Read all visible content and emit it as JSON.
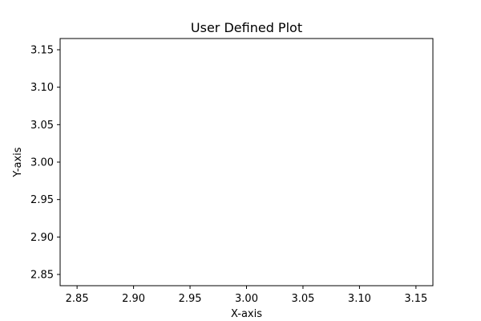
{
  "chart_data": {
    "type": "line",
    "title": "User Defined Plot",
    "xlabel": "X-axis",
    "ylabel": "Y-axis",
    "xlim": [
      2.835,
      3.165
    ],
    "ylim": [
      2.835,
      3.165
    ],
    "xticks": [
      2.85,
      2.9,
      2.95,
      3.0,
      3.05,
      3.1,
      3.15
    ],
    "xtick_labels": [
      "2.85",
      "2.90",
      "2.95",
      "3.00",
      "3.05",
      "3.10",
      "3.15"
    ],
    "yticks": [
      2.85,
      2.9,
      2.95,
      3.0,
      3.05,
      3.1,
      3.15
    ],
    "ytick_labels": [
      "2.85",
      "2.90",
      "2.95",
      "3.00",
      "3.05",
      "3.10",
      "3.15"
    ],
    "series": [],
    "grid": false,
    "legend": "none"
  }
}
